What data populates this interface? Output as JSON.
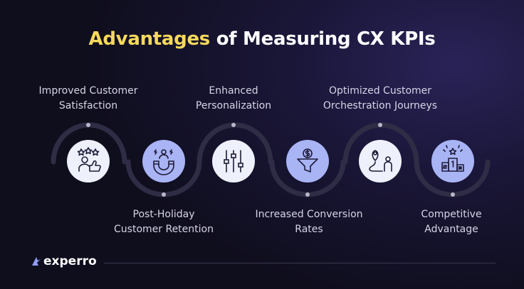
{
  "title": {
    "highlight": "Advantages",
    "rest": " of Measuring CX KPIs"
  },
  "colors": {
    "accent": "#f6d95c",
    "circle_light": "#eef0fb",
    "circle_blue": "#a9b4f5",
    "arc": "#2f2c45",
    "line": "#3a3850"
  },
  "steps": [
    {
      "label_line1": "Improved Customer",
      "label_line2": "Satisfaction",
      "icon": "customer-satisfaction-icon",
      "style": "light"
    },
    {
      "label_line1": "Post-Holiday",
      "label_line2": "Customer Retention",
      "icon": "magnet-retention-icon",
      "style": "blue"
    },
    {
      "label_line1": "Enhanced",
      "label_line2": "Personalization",
      "icon": "sliders-icon",
      "style": "light"
    },
    {
      "label_line1": "Increased Conversion",
      "label_line2": "Rates",
      "icon": "funnel-dollar-icon",
      "style": "blue"
    },
    {
      "label_line1": "Optimized Customer",
      "label_line2": "Orchestration Journeys",
      "icon": "journey-map-icon",
      "style": "light"
    },
    {
      "label_line1": "Competitive",
      "label_line2": "Advantage",
      "icon": "podium-icon",
      "style": "blue"
    }
  ],
  "brand": {
    "name": "experro"
  }
}
